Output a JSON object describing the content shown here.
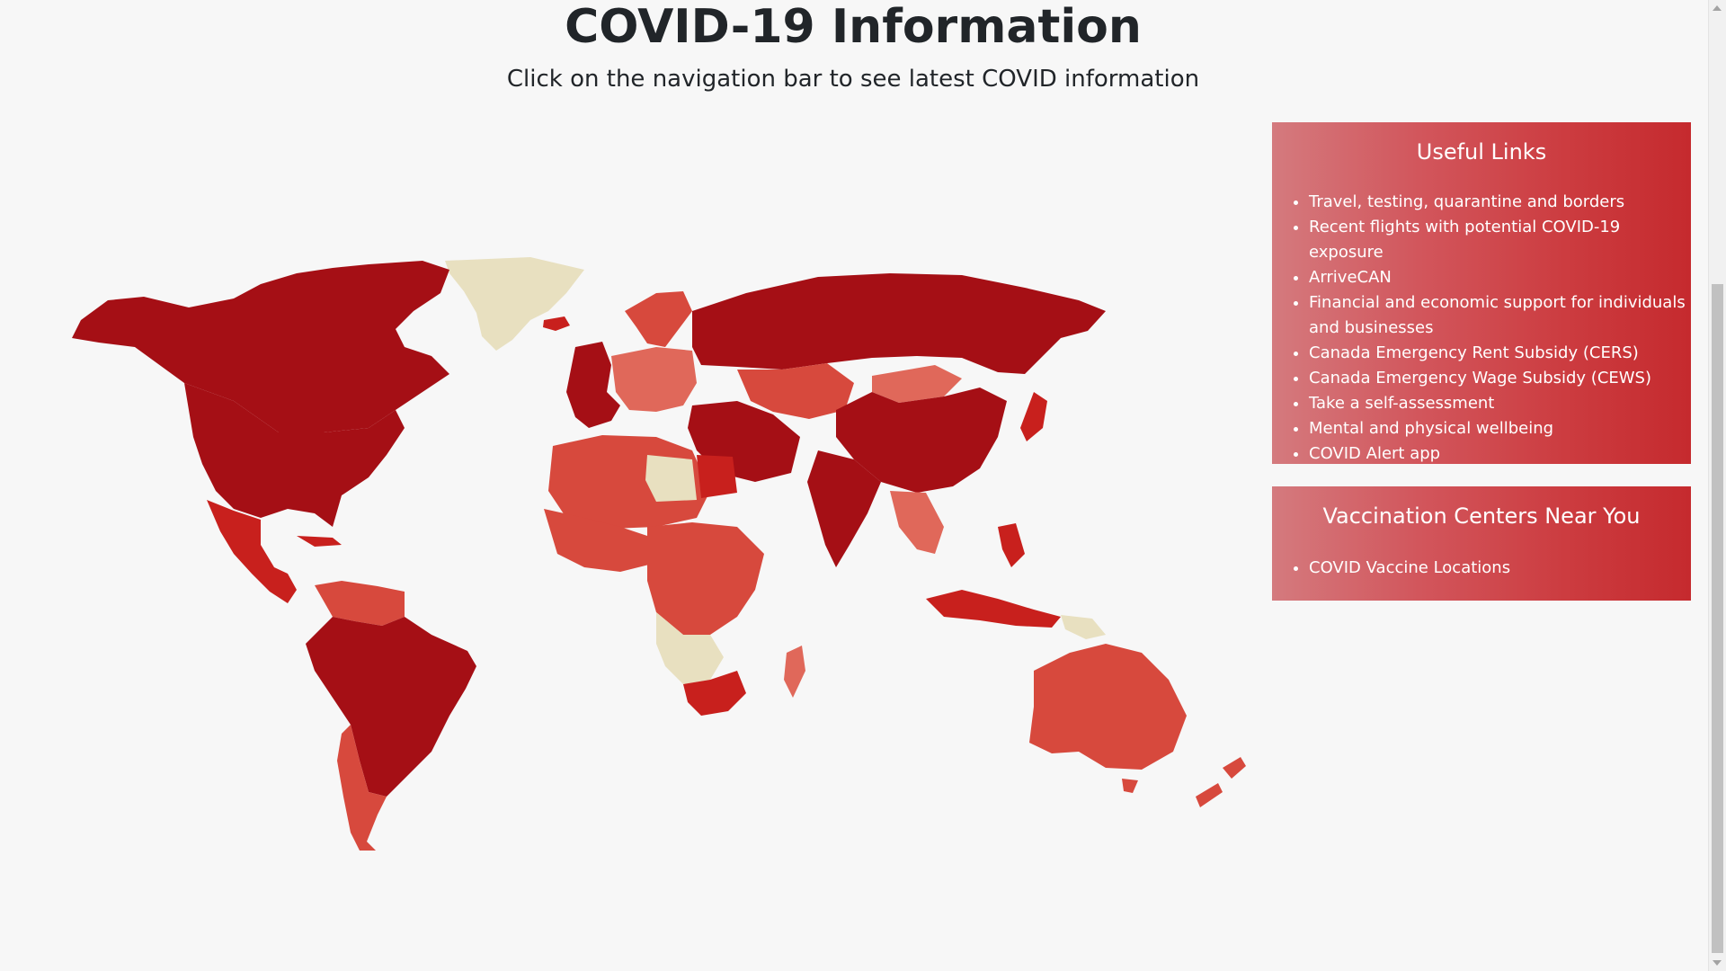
{
  "header": {
    "title": "COVID-19 Information",
    "subtitle": "Click on the navigation bar to see latest COVID information"
  },
  "useful_links": {
    "title": "Useful Links",
    "items": [
      "Travel, testing, quarantine and borders",
      "Recent flights with potential COVID-19 exposure",
      "ArriveCAN",
      "Financial and economic support for individuals and businesses",
      "Canada Emergency Rent Subsidy (CERS)",
      "Canada Emergency Wage Subsidy (CEWS)",
      "Take a self-assessment",
      "Mental and physical wellbeing",
      "COVID Alert app"
    ]
  },
  "vaccination": {
    "title": "Vaccination Centers Near You",
    "items": [
      "COVID Vaccine Locations"
    ]
  },
  "colors": {
    "background": "#f7f7f7",
    "map_darkest": "#a50f15",
    "map_dark": "#c8201d",
    "map_medium": "#d7493d",
    "map_light": "#e0685a",
    "map_nodata": "#e8e0c0",
    "map_gray": "#d9d9d9",
    "card_gradient_start": "#d47a7e",
    "card_gradient_end": "#c52a2e"
  },
  "icons": {
    "list_bullet": "disc-bullet-icon"
  }
}
